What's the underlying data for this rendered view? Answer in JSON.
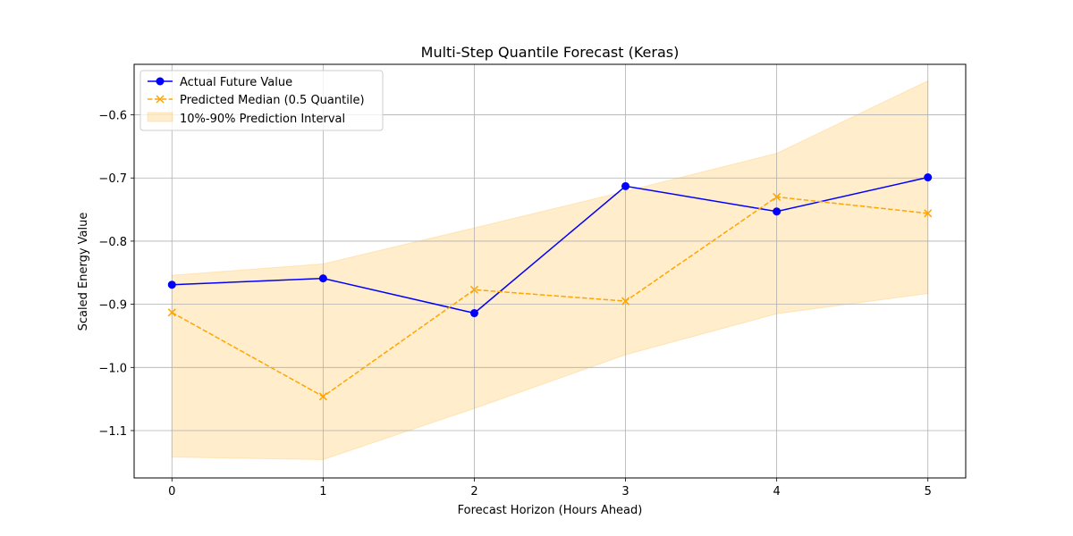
{
  "chart_data": {
    "type": "line",
    "title": "Multi-Step Quantile Forecast (Keras)",
    "xlabel": "Forecast Horizon (Hours Ahead)",
    "ylabel": "Scaled Energy Value",
    "x": [
      0,
      1,
      2,
      3,
      4,
      5
    ],
    "xlim": [
      -0.25,
      5.25
    ],
    "ylim": [
      -1.175,
      -0.52
    ],
    "xticks": [
      0,
      1,
      2,
      3,
      4,
      5
    ],
    "yticks": [
      -1.1,
      -1.0,
      -0.9,
      -0.8,
      -0.7,
      -0.6
    ],
    "xtick_labels": [
      "0",
      "1",
      "2",
      "3",
      "4",
      "5"
    ],
    "ytick_labels": [
      "−1.1",
      "−1.0",
      "−0.9",
      "−0.8",
      "−0.7",
      "−0.6"
    ],
    "grid": true,
    "legend_position": "top-left",
    "series": [
      {
        "name": "Actual Future Value",
        "kind": "line",
        "color": "#0000ff",
        "marker": "circle",
        "linestyle": "solid",
        "values": [
          -0.869,
          -0.859,
          -0.914,
          -0.713,
          -0.753,
          -0.699
        ]
      },
      {
        "name": "Predicted Median (0.5 Quantile)",
        "kind": "line",
        "color": "#ffa500",
        "marker": "x",
        "linestyle": "dashed",
        "values": [
          -0.913,
          -1.046,
          -0.877,
          -0.895,
          -0.73,
          -0.756
        ]
      },
      {
        "name": "10%-90% Prediction Interval",
        "kind": "band",
        "color": "#ffa500",
        "opacity": 0.2,
        "lower": [
          -1.142,
          -1.146,
          -1.065,
          -0.98,
          -0.915,
          -0.883
        ],
        "upper": [
          -0.854,
          -0.836,
          -0.779,
          -0.721,
          -0.661,
          -0.546
        ]
      }
    ]
  }
}
